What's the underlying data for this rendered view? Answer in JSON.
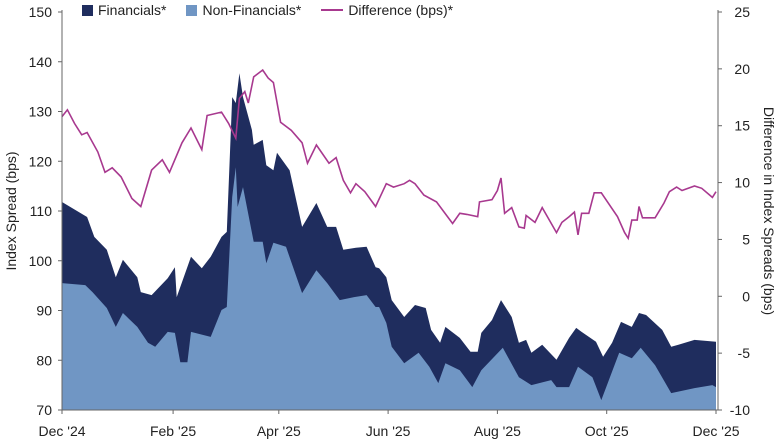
{
  "chart_data": {
    "type": "area",
    "title": "",
    "legend": {
      "position": "top"
    },
    "xlabel": "",
    "ylabel": "Index Spread (bps)",
    "y2label": "Difference in Index Spreads (bps)",
    "ylim": [
      70,
      150
    ],
    "y2lim": [
      -10,
      25
    ],
    "yticks": [
      "70",
      "80",
      "90",
      "100",
      "110",
      "120",
      "130",
      "140",
      "150"
    ],
    "y2ticks": [
      "-10",
      "-5",
      "0",
      "5",
      "10",
      "15",
      "20",
      "25"
    ],
    "xlim": [
      "2024-12-01",
      "2025-12-01"
    ],
    "xticks": [
      {
        "date": "2024-12-01",
        "label": "Dec '24"
      },
      {
        "date": "2025-02-01",
        "label": "Feb '25"
      },
      {
        "date": "2025-04-01",
        "label": "Apr '25"
      },
      {
        "date": "2025-06-01",
        "label": "Jun '25"
      },
      {
        "date": "2025-08-01",
        "label": "Aug '25"
      },
      {
        "date": "2025-10-01",
        "label": "Oct '25"
      },
      {
        "date": "2025-12-01",
        "label": "Dec '25"
      }
    ],
    "grid": false,
    "series": [
      {
        "name": "Financials*",
        "type": "area",
        "axis": "left",
        "color": "#1f2d5e",
        "points": [
          [
            "2024-12-01",
            111.8
          ],
          [
            "2024-12-15",
            108.8
          ],
          [
            "2024-12-19",
            104.8
          ],
          [
            "2024-12-26",
            102.2
          ],
          [
            "2024-12-31",
            96.7
          ],
          [
            "2025-01-04",
            100.2
          ],
          [
            "2025-01-12",
            96.7
          ],
          [
            "2025-01-14",
            93.7
          ],
          [
            "2025-01-20",
            93.1
          ],
          [
            "2025-01-29",
            96.5
          ],
          [
            "2025-02-02",
            98.7
          ],
          [
            "2025-02-03",
            92.7
          ],
          [
            "2025-02-11",
            100.8
          ],
          [
            "2025-02-17",
            98.5
          ],
          [
            "2025-02-22",
            100.8
          ],
          [
            "2025-02-28",
            104.8
          ],
          [
            "2025-03-03",
            105.8
          ],
          [
            "2025-03-06",
            132.9
          ],
          [
            "2025-03-08",
            131.7
          ],
          [
            "2025-03-10",
            137.7
          ],
          [
            "2025-03-12",
            132.9
          ],
          [
            "2025-03-17",
            126.3
          ],
          [
            "2025-03-18",
            123.3
          ],
          [
            "2025-03-23",
            124.3
          ],
          [
            "2025-03-25",
            119.2
          ],
          [
            "2025-03-29",
            118.2
          ],
          [
            "2025-03-31",
            121.7
          ],
          [
            "2025-04-07",
            118.2
          ],
          [
            "2025-04-14",
            106.8
          ],
          [
            "2025-04-22",
            111.6
          ],
          [
            "2025-04-28",
            106.8
          ],
          [
            "2025-05-03",
            106.8
          ],
          [
            "2025-05-07",
            102.2
          ],
          [
            "2025-05-14",
            102.6
          ],
          [
            "2025-05-20",
            102.8
          ],
          [
            "2025-05-25",
            98.7
          ],
          [
            "2025-05-27",
            98.5
          ],
          [
            "2025-05-31",
            96.7
          ],
          [
            "2025-06-03",
            92.1
          ],
          [
            "2025-06-10",
            88.7
          ],
          [
            "2025-06-16",
            91.1
          ],
          [
            "2025-06-22",
            90.5
          ],
          [
            "2025-06-25",
            86.1
          ],
          [
            "2025-06-30",
            83.5
          ],
          [
            "2025-07-03",
            86.7
          ],
          [
            "2025-07-11",
            84.5
          ],
          [
            "2025-07-17",
            81.7
          ],
          [
            "2025-07-21",
            81.7
          ],
          [
            "2025-07-23",
            85.5
          ],
          [
            "2025-07-29",
            88.1
          ],
          [
            "2025-08-03",
            92.1
          ],
          [
            "2025-08-09",
            88.7
          ],
          [
            "2025-08-13",
            83.5
          ],
          [
            "2025-08-17",
            84.1
          ],
          [
            "2025-08-20",
            81.5
          ],
          [
            "2025-08-26",
            83.1
          ],
          [
            "2025-09-03",
            80.1
          ],
          [
            "2025-09-10",
            84.5
          ],
          [
            "2025-09-14",
            86.5
          ],
          [
            "2025-09-17",
            85.7
          ],
          [
            "2025-09-25",
            83.7
          ],
          [
            "2025-09-29",
            80.7
          ],
          [
            "2025-10-04",
            83.5
          ],
          [
            "2025-10-09",
            87.7
          ],
          [
            "2025-10-15",
            86.7
          ],
          [
            "2025-10-19",
            89.5
          ],
          [
            "2025-10-23",
            89.1
          ],
          [
            "2025-11-01",
            86.1
          ],
          [
            "2025-11-06",
            82.7
          ],
          [
            "2025-11-10",
            83.1
          ],
          [
            "2025-11-19",
            84.1
          ],
          [
            "2025-12-01",
            83.7
          ]
        ]
      },
      {
        "name": "Non-Financials*",
        "type": "area",
        "axis": "left",
        "color": "#7096c4",
        "points": [
          [
            "2024-12-01",
            95.5
          ],
          [
            "2024-12-14",
            95.1
          ],
          [
            "2024-12-18",
            93.7
          ],
          [
            "2024-12-26",
            90.5
          ],
          [
            "2024-12-31",
            86.7
          ],
          [
            "2025-01-04",
            89.5
          ],
          [
            "2025-01-12",
            86.7
          ],
          [
            "2025-01-18",
            83.5
          ],
          [
            "2025-01-22",
            82.7
          ],
          [
            "2025-01-29",
            85.7
          ],
          [
            "2025-02-02",
            85.5
          ],
          [
            "2025-02-05",
            79.6
          ],
          [
            "2025-02-09",
            79.6
          ],
          [
            "2025-02-11",
            85.7
          ],
          [
            "2025-02-22",
            84.7
          ],
          [
            "2025-02-28",
            90.1
          ],
          [
            "2025-03-03",
            90.7
          ],
          [
            "2025-03-06",
            112.8
          ],
          [
            "2025-03-08",
            118.8
          ],
          [
            "2025-03-09",
            110.8
          ],
          [
            "2025-03-12",
            114.8
          ],
          [
            "2025-03-18",
            103.8
          ],
          [
            "2025-03-23",
            103.8
          ],
          [
            "2025-03-25",
            99.5
          ],
          [
            "2025-03-29",
            103.6
          ],
          [
            "2025-04-05",
            102.8
          ],
          [
            "2025-04-14",
            93.5
          ],
          [
            "2025-04-22",
            98.1
          ],
          [
            "2025-04-28",
            95.5
          ],
          [
            "2025-05-05",
            92.1
          ],
          [
            "2025-05-13",
            92.7
          ],
          [
            "2025-05-20",
            93.1
          ],
          [
            "2025-05-25",
            90.7
          ],
          [
            "2025-05-27",
            90.7
          ],
          [
            "2025-05-31",
            87.5
          ],
          [
            "2025-06-03",
            82.7
          ],
          [
            "2025-06-10",
            79.4
          ],
          [
            "2025-06-18",
            81.5
          ],
          [
            "2025-06-24",
            78.7
          ],
          [
            "2025-06-29",
            75.4
          ],
          [
            "2025-07-03",
            79.4
          ],
          [
            "2025-07-11",
            78.0
          ],
          [
            "2025-07-18",
            74.6
          ],
          [
            "2025-07-23",
            78.0
          ],
          [
            "2025-08-04",
            82.5
          ],
          [
            "2025-08-13",
            76.6
          ],
          [
            "2025-08-20",
            75.0
          ],
          [
            "2025-08-31",
            76.0
          ],
          [
            "2025-09-03",
            74.6
          ],
          [
            "2025-09-10",
            74.6
          ],
          [
            "2025-09-15",
            78.7
          ],
          [
            "2025-09-23",
            76.6
          ],
          [
            "2025-09-28",
            72.0
          ],
          [
            "2025-10-08",
            81.5
          ],
          [
            "2025-10-15",
            80.4
          ],
          [
            "2025-10-20",
            82.5
          ],
          [
            "2025-10-28",
            79.0
          ],
          [
            "2025-11-06",
            73.4
          ],
          [
            "2025-11-19",
            74.4
          ],
          [
            "2025-11-29",
            75.0
          ],
          [
            "2025-12-01",
            74.6
          ]
        ]
      },
      {
        "name": "Difference (bps)*",
        "type": "line",
        "axis": "right",
        "color": "#a8398f",
        "points": [
          [
            "2024-12-01",
            15.8
          ],
          [
            "2024-12-04",
            16.4
          ],
          [
            "2024-12-08",
            15.2
          ],
          [
            "2024-12-12",
            14.2
          ],
          [
            "2024-12-15",
            14.4
          ],
          [
            "2024-12-21",
            12.7
          ],
          [
            "2024-12-25",
            10.9
          ],
          [
            "2024-12-29",
            11.3
          ],
          [
            "2025-01-03",
            10.5
          ],
          [
            "2025-01-09",
            8.6
          ],
          [
            "2025-01-14",
            7.9
          ],
          [
            "2025-01-20",
            11.1
          ],
          [
            "2025-01-26",
            12.0
          ],
          [
            "2025-01-30",
            10.9
          ],
          [
            "2025-02-06",
            13.5
          ],
          [
            "2025-02-11",
            14.8
          ],
          [
            "2025-02-17",
            12.9
          ],
          [
            "2025-02-20",
            15.9
          ],
          [
            "2025-02-28",
            16.2
          ],
          [
            "2025-03-04",
            15.2
          ],
          [
            "2025-03-08",
            13.9
          ],
          [
            "2025-03-10",
            17.4
          ],
          [
            "2025-03-13",
            18.0
          ],
          [
            "2025-03-15",
            17.0
          ],
          [
            "2025-03-18",
            19.3
          ],
          [
            "2025-03-23",
            19.9
          ],
          [
            "2025-03-26",
            19.2
          ],
          [
            "2025-03-29",
            18.8
          ],
          [
            "2025-04-02",
            15.3
          ],
          [
            "2025-04-08",
            14.6
          ],
          [
            "2025-04-14",
            13.5
          ],
          [
            "2025-04-17",
            11.7
          ],
          [
            "2025-04-22",
            13.3
          ],
          [
            "2025-04-29",
            11.7
          ],
          [
            "2025-05-03",
            12.2
          ],
          [
            "2025-05-07",
            10.2
          ],
          [
            "2025-05-11",
            9.1
          ],
          [
            "2025-05-14",
            9.9
          ],
          [
            "2025-05-19",
            9.2
          ],
          [
            "2025-05-25",
            7.9
          ],
          [
            "2025-05-31",
            9.9
          ],
          [
            "2025-06-04",
            9.6
          ],
          [
            "2025-06-10",
            9.9
          ],
          [
            "2025-06-13",
            10.2
          ],
          [
            "2025-06-16",
            9.9
          ],
          [
            "2025-06-21",
            8.9
          ],
          [
            "2025-06-28",
            8.3
          ],
          [
            "2025-07-07",
            6.4
          ],
          [
            "2025-07-11",
            7.3
          ],
          [
            "2025-07-15",
            7.2
          ],
          [
            "2025-07-21",
            7.0
          ],
          [
            "2025-07-22",
            8.3
          ],
          [
            "2025-07-29",
            8.5
          ],
          [
            "2025-08-01",
            9.3
          ],
          [
            "2025-08-03",
            10.4
          ],
          [
            "2025-08-05",
            7.3
          ],
          [
            "2025-08-09",
            7.8
          ],
          [
            "2025-08-13",
            6.1
          ],
          [
            "2025-08-16",
            6.0
          ],
          [
            "2025-08-17",
            7.1
          ],
          [
            "2025-08-22",
            6.5
          ],
          [
            "2025-08-26",
            7.8
          ],
          [
            "2025-09-03",
            5.6
          ],
          [
            "2025-09-06",
            6.5
          ],
          [
            "2025-09-10",
            7.0
          ],
          [
            "2025-09-13",
            7.4
          ],
          [
            "2025-09-15",
            5.4
          ],
          [
            "2025-09-17",
            7.3
          ],
          [
            "2025-09-21",
            7.3
          ],
          [
            "2025-09-24",
            9.1
          ],
          [
            "2025-09-28",
            9.1
          ],
          [
            "2025-10-07",
            7.0
          ],
          [
            "2025-10-11",
            5.6
          ],
          [
            "2025-10-13",
            5.1
          ],
          [
            "2025-10-15",
            6.7
          ],
          [
            "2025-10-18",
            6.7
          ],
          [
            "2025-10-19",
            7.9
          ],
          [
            "2025-10-21",
            6.9
          ],
          [
            "2025-10-28",
            6.9
          ],
          [
            "2025-11-02",
            8.2
          ],
          [
            "2025-11-05",
            9.2
          ],
          [
            "2025-11-09",
            9.6
          ],
          [
            "2025-11-12",
            9.3
          ],
          [
            "2025-11-19",
            9.7
          ],
          [
            "2025-11-23",
            9.5
          ],
          [
            "2025-11-29",
            8.7
          ],
          [
            "2025-12-01",
            9.2
          ]
        ]
      }
    ]
  }
}
